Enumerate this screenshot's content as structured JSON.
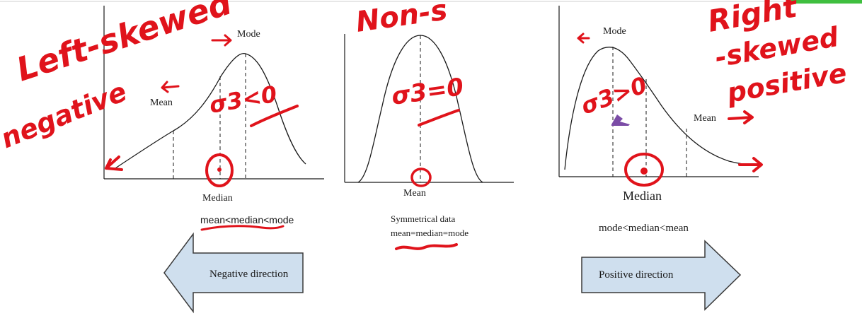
{
  "panels": {
    "left": {
      "mode_label": "Mode",
      "mean_label": "Mean",
      "median_label": "Median",
      "relation": "mean<median<mode",
      "arrow_label": "Negative direction"
    },
    "center": {
      "mean_label": "Mean",
      "caption_line1": "Symmetrical data",
      "caption_line2": "mean=median=mode"
    },
    "right": {
      "mode_label": "Mode",
      "mean_label": "Mean",
      "median_label": "Median",
      "relation": "mode<median<mean",
      "arrow_label": "Positive direction"
    }
  },
  "annotations": {
    "left_title": "Left-skewed",
    "left_sub": "negative",
    "left_formula": "σ3<0",
    "center_title": "Non-s",
    "center_formula": "σ3=0",
    "right_title": "Right",
    "right_sub": "-skewed",
    "right_sub2": "positive",
    "right_formula": "σ3>0"
  },
  "colors": {
    "ink": "#e0131b",
    "arrow_fill": "#cfdfee",
    "arrow_stroke": "#3a3a3a",
    "axis": "#1a1a1a",
    "cursor": "#7b4ca6",
    "accent_green": "#3fbf3f"
  }
}
